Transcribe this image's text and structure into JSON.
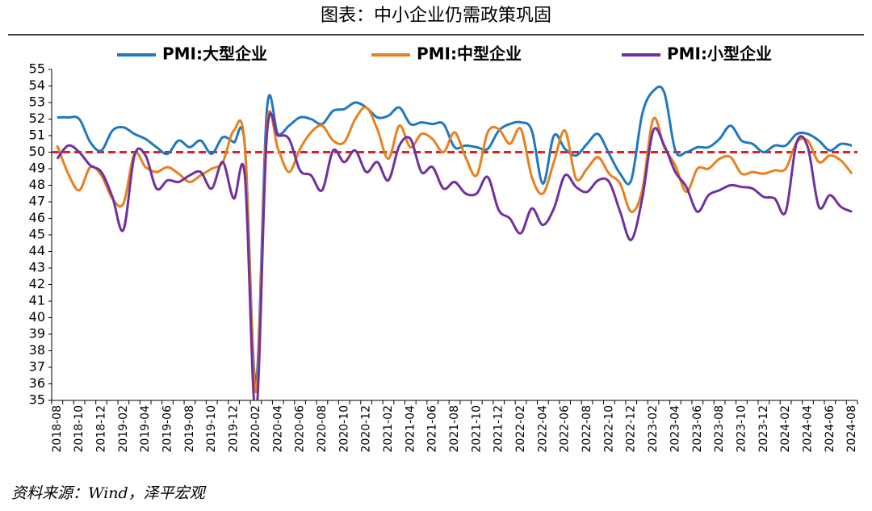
{
  "chart_data": {
    "type": "line",
    "title": "图表：中小企业仍需政策巩固",
    "source": "资料来源：Wind，泽平宏观",
    "categories": [
      "2018-08",
      null,
      "2018-10",
      null,
      "2018-12",
      null,
      "2019-02",
      null,
      "2019-04",
      null,
      "2019-06",
      null,
      "2019-08",
      null,
      "2019-10",
      null,
      "2019-12",
      null,
      "2020-02",
      null,
      "2020-04",
      null,
      "2020-06",
      null,
      "2020-08",
      null,
      "2020-10",
      null,
      "2020-12",
      null,
      "2021-02",
      null,
      "2021-04",
      null,
      "2021-06",
      null,
      "2021-08",
      null,
      "2021-10",
      null,
      "2021-12",
      null,
      "2022-02",
      null,
      "2022-04",
      null,
      "2022-06",
      null,
      "2022-08",
      null,
      "2022-10",
      null,
      "2022-12",
      null,
      "2023-02",
      null,
      "2023-04",
      null,
      "2023-06",
      null,
      "2023-08",
      null,
      "2023-10",
      null,
      "2023-12",
      null,
      "2024-02",
      null,
      "2024-04",
      null,
      "2024-06",
      null,
      "2024-08"
    ],
    "series": [
      {
        "name": "PMI:大型企业",
        "color": "#1f78c1",
        "values": [
          52.1,
          52.1,
          52.0,
          50.6,
          50.1,
          51.3,
          51.5,
          51.1,
          50.8,
          50.3,
          49.9,
          50.7,
          50.3,
          50.7,
          49.9,
          50.9,
          50.6,
          50.4,
          36.1,
          52.6,
          51.1,
          51.6,
          52.1,
          52.0,
          51.7,
          52.5,
          52.6,
          53.0,
          52.7,
          52.1,
          52.2,
          52.7,
          51.7,
          51.8,
          51.7,
          51.7,
          50.3,
          50.4,
          50.3,
          50.2,
          51.3,
          51.7,
          51.8,
          51.3,
          48.1,
          51.0,
          50.2,
          49.8,
          50.5,
          51.1,
          49.9,
          48.7,
          48.3,
          52.3,
          53.7,
          53.6,
          50.1,
          50.0,
          50.3,
          50.3,
          50.8,
          51.6,
          50.7,
          50.5,
          50.0,
          50.4,
          50.4,
          51.1,
          51.1,
          50.7,
          50.1,
          50.5,
          50.4
        ]
      },
      {
        "name": "PMI:中型企业",
        "color": "#e8801e",
        "values": [
          50.4,
          48.7,
          47.7,
          49.1,
          48.6,
          47.2,
          46.9,
          49.9,
          49.1,
          48.8,
          49.1,
          48.7,
          48.2,
          48.6,
          49.0,
          49.4,
          51.3,
          50.4,
          35.5,
          51.6,
          50.2,
          48.8,
          50.2,
          51.2,
          51.6,
          50.7,
          50.6,
          52.0,
          52.7,
          51.4,
          49.6,
          51.6,
          50.3,
          51.1,
          50.8,
          50.0,
          51.2,
          49.7,
          48.6,
          51.2,
          51.4,
          50.5,
          51.4,
          48.5,
          47.5,
          49.4,
          51.3,
          48.4,
          49.0,
          49.7,
          48.7,
          48.1,
          46.4,
          47.7,
          52.0,
          50.3,
          49.2,
          47.6,
          49.0,
          49.0,
          49.6,
          49.7,
          48.7,
          48.8,
          48.7,
          48.9,
          49.0,
          50.6,
          50.7,
          49.4,
          49.8,
          49.5,
          48.7
        ]
      },
      {
        "name": "PMI:小型企业",
        "color": "#7030a0",
        "values": [
          49.6,
          50.4,
          50.0,
          49.2,
          48.8,
          47.3,
          45.3,
          49.8,
          49.8,
          47.8,
          48.3,
          48.2,
          48.6,
          48.8,
          47.8,
          49.4,
          47.2,
          48.6,
          34.1,
          51.1,
          51.0,
          50.8,
          48.9,
          48.6,
          47.7,
          50.1,
          49.4,
          50.1,
          48.8,
          49.4,
          48.3,
          50.4,
          50.8,
          48.8,
          49.1,
          47.8,
          48.2,
          47.5,
          47.5,
          48.5,
          46.5,
          46.0,
          45.1,
          46.6,
          45.6,
          46.6,
          48.6,
          47.9,
          47.6,
          48.3,
          48.2,
          46.4,
          44.7,
          47.2,
          51.3,
          50.4,
          48.8,
          47.9,
          46.4,
          47.4,
          47.7,
          48.0,
          47.9,
          47.8,
          47.3,
          47.2,
          46.4,
          50.6,
          50.3,
          46.7,
          47.4,
          46.7,
          46.4
        ]
      }
    ],
    "reference_line": {
      "value": 50,
      "color": "#e02020"
    },
    "ylim": [
      35,
      55
    ],
    "yticks": [
      35,
      36,
      37,
      38,
      39,
      40,
      41,
      42,
      43,
      44,
      45,
      46,
      47,
      48,
      49,
      50,
      51,
      52,
      53,
      54,
      55
    ]
  }
}
